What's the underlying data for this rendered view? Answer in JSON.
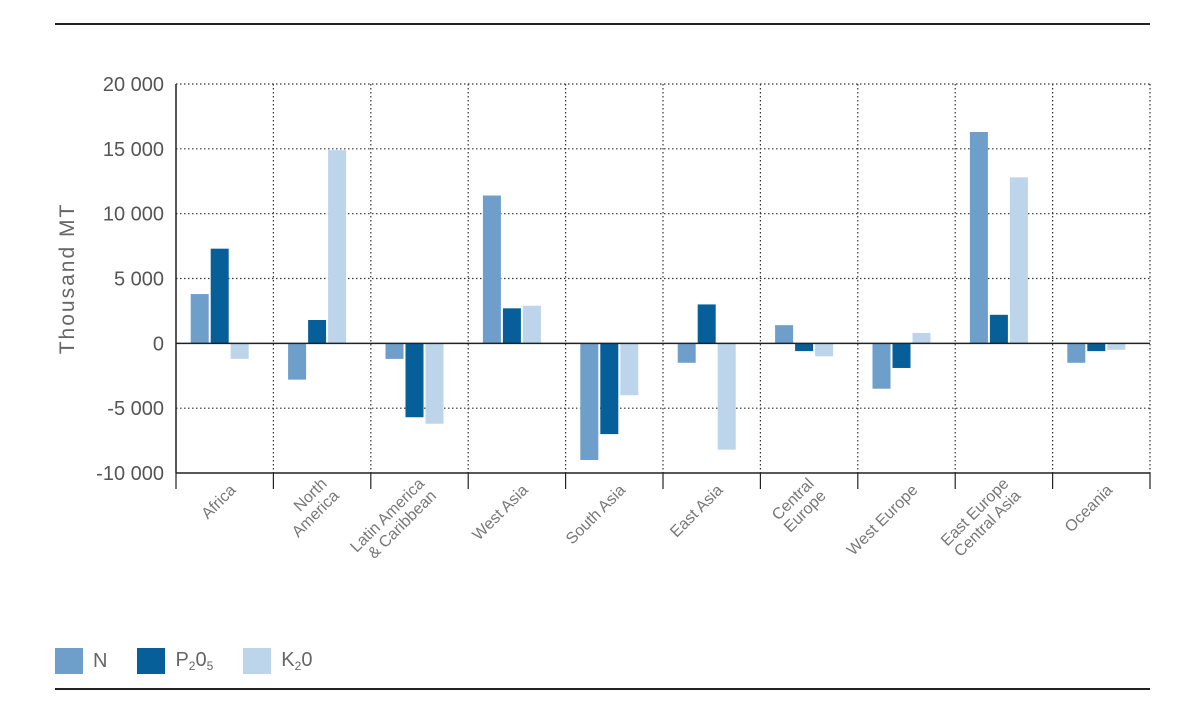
{
  "chart_data": {
    "type": "bar",
    "title": "",
    "xlabel": "",
    "ylabel": "Thousand MT",
    "ylim": [
      -10000,
      20000
    ],
    "yticks": [
      20000,
      15000,
      10000,
      5000,
      0,
      -5000,
      -10000
    ],
    "ytick_labels": [
      "20 000",
      "15 000",
      "10 000",
      "5 000",
      "0",
      "-5 000",
      "-10 000"
    ],
    "grid": true,
    "legend_position": "bottom-left",
    "categories": [
      [
        "Africa"
      ],
      [
        "North",
        "America"
      ],
      [
        "Latin America",
        "& Caribbean"
      ],
      [
        "West Asia"
      ],
      [
        "South Asia"
      ],
      [
        "East Asia"
      ],
      [
        "Central",
        "Europe"
      ],
      [
        "West Europe"
      ],
      [
        "East Europe",
        "Central Asia"
      ],
      [
        "Oceania"
      ]
    ],
    "series": [
      {
        "name": "N",
        "legend_main": "N",
        "legend_sub1": "",
        "legend_mid": "",
        "legend_sub2": "",
        "color": "#6e9fcb",
        "values": [
          3800,
          -2800,
          -1200,
          11400,
          -9000,
          -1500,
          1400,
          -3500,
          16300,
          -1500
        ]
      },
      {
        "name": "P2O5",
        "legend_main": "P",
        "legend_sub1": "2",
        "legend_mid": "0",
        "legend_sub2": "5",
        "color": "#075f9a",
        "values": [
          7300,
          1800,
          -5700,
          2700,
          -7000,
          3000,
          -600,
          -1900,
          2200,
          -600
        ]
      },
      {
        "name": "K2O",
        "legend_main": "K",
        "legend_sub1": "2",
        "legend_mid": "0",
        "legend_sub2": "",
        "color": "#bcd5ea",
        "values": [
          -1200,
          14900,
          -6200,
          2900,
          -4000,
          -8200,
          -1000,
          800,
          12800,
          -500
        ]
      }
    ]
  }
}
